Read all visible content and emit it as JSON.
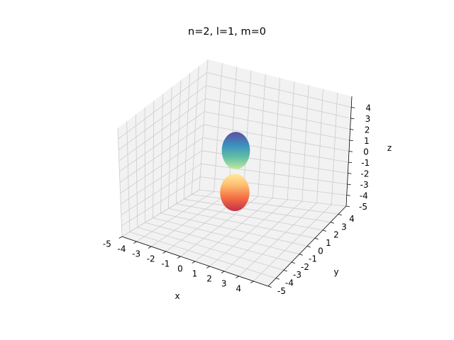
{
  "chart_data": {
    "type": "surface3d",
    "title": "n=2, l=1, m=0",
    "xlabel": "x",
    "ylabel": "y",
    "zlabel": "z",
    "x_ticks": [
      "-5",
      "-4",
      "-3",
      "-2",
      "-1",
      "0",
      "1",
      "2",
      "3",
      "4"
    ],
    "y_ticks": [
      "-5",
      "-4",
      "-3",
      "-2",
      "-1",
      "0",
      "1",
      "2",
      "3",
      "4"
    ],
    "z_ticks": [
      "-5",
      "-4",
      "-3",
      "-2",
      "-1",
      "0",
      "1",
      "2",
      "3",
      "4"
    ],
    "xlim": [
      -5,
      5
    ],
    "ylim": [
      -5,
      5
    ],
    "zlim": [
      -5,
      5
    ],
    "grid": true,
    "colormap": "Spectral",
    "lobes": [
      {
        "name": "upper",
        "center": [
          0,
          0,
          1.8
        ],
        "radii": [
          2.1,
          2.1,
          1.6
        ]
      },
      {
        "name": "lower",
        "center": [
          0,
          0,
          -1.8
        ],
        "radii": [
          2.1,
          2.1,
          1.6
        ]
      }
    ],
    "pane_color": "#f2f2f2",
    "grid_color": "#cccccc"
  }
}
